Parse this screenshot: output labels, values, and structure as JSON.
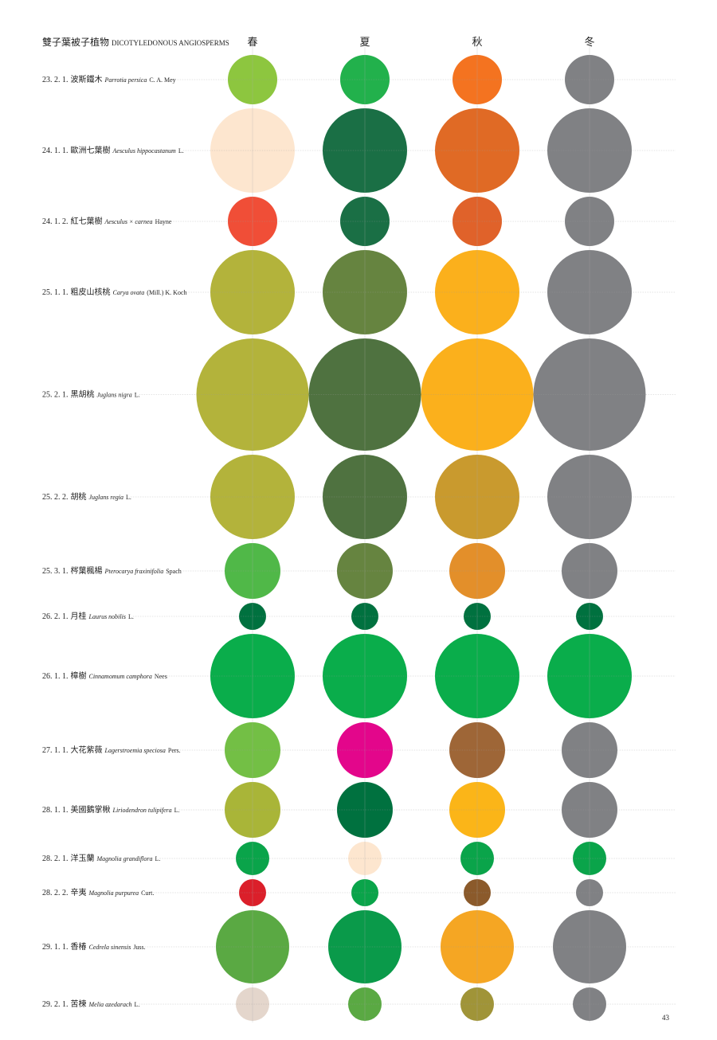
{
  "header": {
    "title_zh": "雙子葉被子植物",
    "title_en": "DICOTYLEDONOUS ANGIOSPERMS",
    "seasons": [
      "春",
      "夏",
      "秋",
      "冬"
    ]
  },
  "rows": [
    {
      "code": "23. 2. 1.",
      "name": "波斯鐵木",
      "latin": "Parrotia persica",
      "author": "C. A. Mey",
      "size": 62,
      "colors": [
        "#8dc63f",
        "#22b14c",
        "#f47320",
        "#808184"
      ]
    },
    {
      "code": "24. 1. 1.",
      "name": "歐洲七葉樹",
      "latin": "Aesculus hippocastanum",
      "author": "L.",
      "size": 106,
      "colors": [
        "#fde6cf",
        "#1a6f45",
        "#e06a25",
        "#808184"
      ]
    },
    {
      "code": "24. 1. 2.",
      "name": "紅七葉樹",
      "latin": "Aesculus × carnea",
      "author": "Hayne",
      "size": 62,
      "colors": [
        "#f04e37",
        "#1a6f45",
        "#e0622a",
        "#808184"
      ]
    },
    {
      "code": "25. 1. 1.",
      "name": "粗皮山核桃",
      "latin": "Carya ovata",
      "author": "(Mill.) K. Koch",
      "size": 106,
      "colors": [
        "#b3b33b",
        "#668440",
        "#fbb01c",
        "#808184"
      ]
    },
    {
      "code": "25. 2. 1.",
      "name": "黑胡桃",
      "latin": "Juglans nigra",
      "author": "L.",
      "size": 141,
      "colors": [
        "#b3b33b",
        "#4f7240",
        "#fbb01c",
        "#808184"
      ]
    },
    {
      "code": "25. 2. 2.",
      "name": "胡桃",
      "latin": "Juglans regia",
      "author": "L.",
      "size": 106,
      "colors": [
        "#b3b33b",
        "#4f7240",
        "#c99a2e",
        "#808184"
      ]
    },
    {
      "code": "25. 3. 1.",
      "name": "梣葉楓楊",
      "latin": "Pterocarya fraxinifolia",
      "author": "Spach",
      "size": 70,
      "colors": [
        "#50b848",
        "#668440",
        "#e38f2a",
        "#808184"
      ]
    },
    {
      "code": "26. 2. 1.",
      "name": "月桂",
      "latin": "Laurus nobilis",
      "author": "L.",
      "size": 34,
      "colors": [
        "#00713f",
        "#00713f",
        "#00713f",
        "#00713f"
      ]
    },
    {
      "code": "26. 1. 1.",
      "name": "樟樹",
      "latin": "Cinnamomum camphora",
      "author": "Nees",
      "size": 106,
      "colors": [
        "#0aad4b",
        "#0aad4b",
        "#0aad4b",
        "#0aad4b"
      ]
    },
    {
      "code": "27. 1. 1.",
      "name": "大花紫薇",
      "latin": "Lagerstroemia speciosa",
      "author": "Pers.",
      "size": 70,
      "colors": [
        "#73bf45",
        "#e3068b",
        "#9e6637",
        "#808184"
      ]
    },
    {
      "code": "28. 1. 1.",
      "name": "美國鵝掌楸",
      "latin": "Liriodendron tulipifera",
      "author": "L.",
      "size": 70,
      "colors": [
        "#a9b538",
        "#00713f",
        "#fbb518",
        "#808184"
      ]
    },
    {
      "code": "28. 2. 1.",
      "name": "洋玉蘭",
      "latin": "Magnolia grandiflora",
      "author": "L.",
      "size": 42,
      "colors": [
        "#0aa44a",
        "#fde6cf",
        "#0aa44a",
        "#0aa44a"
      ]
    },
    {
      "code": "28. 2. 2.",
      "name": "辛夷",
      "latin": "Magnolia purpurea",
      "author": "Curt.",
      "size": 34,
      "colors": [
        "#db1f2a",
        "#0aa44a",
        "#8b5a2b",
        "#808184"
      ]
    },
    {
      "code": "29. 1. 1.",
      "name": "香椿",
      "latin": "Cedrela sinensis",
      "author": "Juss.",
      "size": 92,
      "colors": [
        "#5aa943",
        "#0a9a4a",
        "#f5a623",
        "#808184"
      ]
    },
    {
      "code": "29. 2. 1.",
      "name": "苦楝",
      "latin": "Melia azedarach",
      "author": "L.",
      "size": 42,
      "colors": [
        "#e4d6cc",
        "#5aa943",
        "#a09438",
        "#808184"
      ]
    }
  ],
  "page_number": "43"
}
